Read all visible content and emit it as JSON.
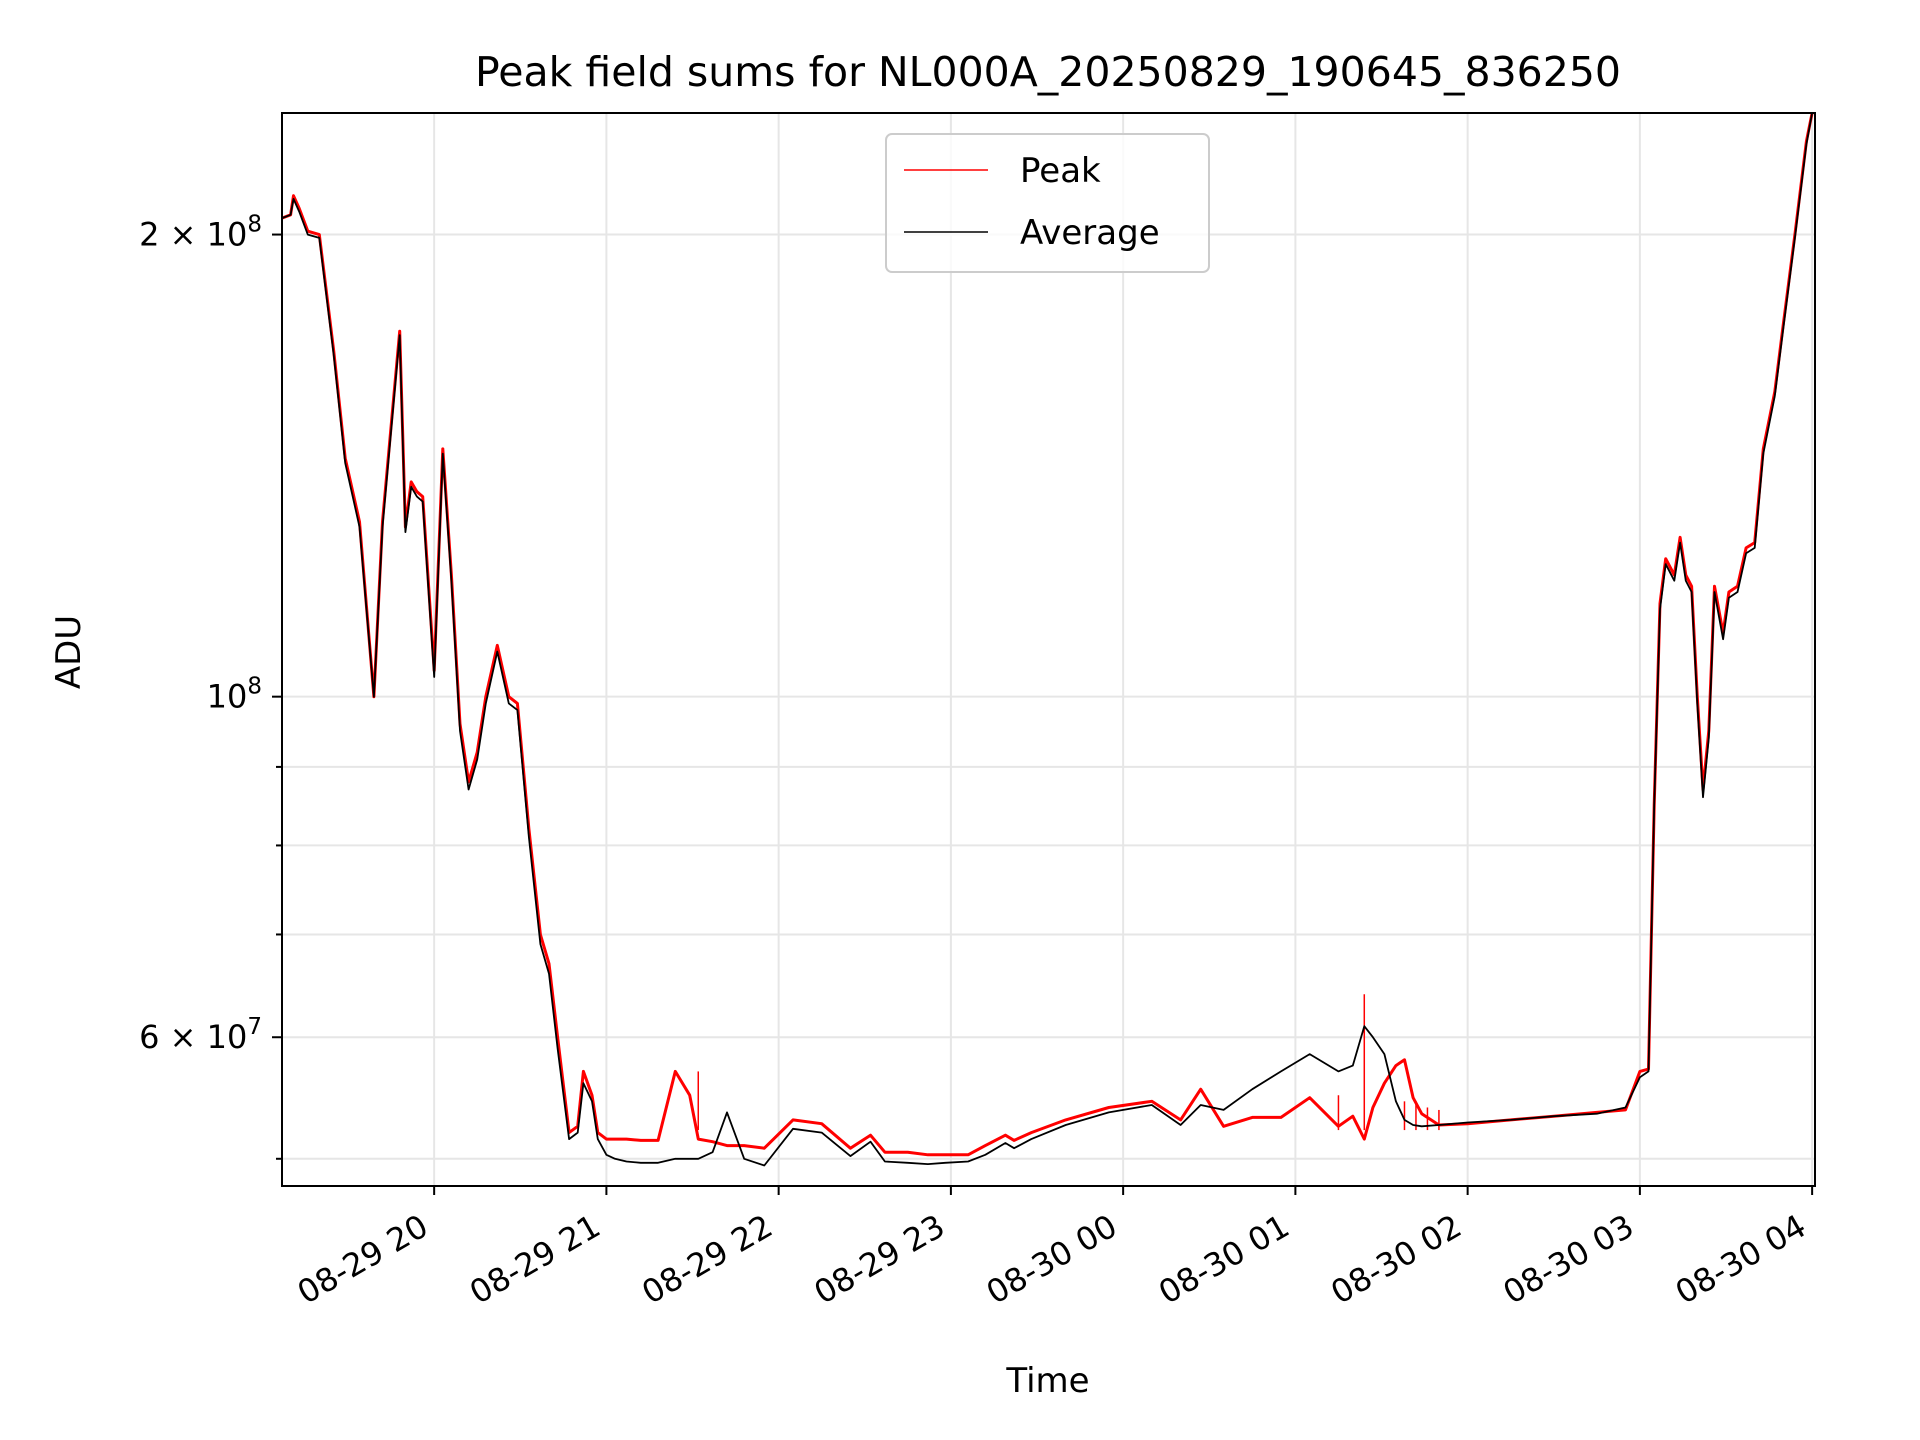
{
  "chart_data": {
    "type": "line",
    "title": "Peak field sums for NL000A_20250829_190645_836250",
    "xlabel": "Time",
    "ylabel": "ADU",
    "x_scale": "time",
    "y_scale": "log",
    "xlim": [
      "2025-08-29T19:07",
      "2025-08-30T04:01"
    ],
    "ylim": [
      48000000,
      240000000
    ],
    "grid": true,
    "legend_position": "upper center",
    "x_ticks": [
      {
        "label": "08-29 20",
        "t": "2025-08-29T20:00"
      },
      {
        "label": "08-29 21",
        "t": "2025-08-29T21:00"
      },
      {
        "label": "08-29 22",
        "t": "2025-08-29T22:00"
      },
      {
        "label": "08-29 23",
        "t": "2025-08-29T23:00"
      },
      {
        "label": "08-30 00",
        "t": "2025-08-30T00:00"
      },
      {
        "label": "08-30 01",
        "t": "2025-08-30T01:00"
      },
      {
        "label": "08-30 02",
        "t": "2025-08-30T02:00"
      },
      {
        "label": "08-30 03",
        "t": "2025-08-30T03:00"
      },
      {
        "label": "08-30 04",
        "t": "2025-08-30T04:00"
      }
    ],
    "y_major_ticks": [
      {
        "value": 100000000,
        "base": "10",
        "exp": "8"
      },
      {
        "value": 60000000,
        "base": "6 × 10",
        "exp": "7"
      },
      {
        "value": 200000000,
        "base": "2 × 10",
        "exp": "8"
      }
    ],
    "y_minor_ticks": [
      50000000,
      70000000,
      80000000,
      90000000,
      300000000
    ],
    "series": [
      {
        "name": "Peak",
        "color": "#ff0000",
        "x": [
          "2025-08-29T19:07",
          "2025-08-29T19:10",
          "2025-08-29T19:11",
          "2025-08-29T19:13",
          "2025-08-29T19:16",
          "2025-08-29T19:20",
          "2025-08-29T19:25",
          "2025-08-29T19:29",
          "2025-08-29T19:34",
          "2025-08-29T19:39",
          "2025-08-29T19:42",
          "2025-08-29T19:45",
          "2025-08-29T19:48",
          "2025-08-29T19:50",
          "2025-08-29T19:52",
          "2025-08-29T19:54",
          "2025-08-29T19:56",
          "2025-08-29T20:00",
          "2025-08-29T20:03",
          "2025-08-29T20:06",
          "2025-08-29T20:09",
          "2025-08-29T20:12",
          "2025-08-29T20:15",
          "2025-08-29T20:18",
          "2025-08-29T20:22",
          "2025-08-29T20:26",
          "2025-08-29T20:29",
          "2025-08-29T20:33",
          "2025-08-29T20:37",
          "2025-08-29T20:40",
          "2025-08-29T20:43",
          "2025-08-29T20:47",
          "2025-08-29T20:50",
          "2025-08-29T20:52",
          "2025-08-29T20:55",
          "2025-08-29T20:57",
          "2025-08-29T21:00",
          "2025-08-29T21:03",
          "2025-08-29T21:07",
          "2025-08-29T21:12",
          "2025-08-29T21:18",
          "2025-08-29T21:24",
          "2025-08-29T21:29",
          "2025-08-29T21:32",
          "2025-08-29T21:37",
          "2025-08-29T21:42",
          "2025-08-29T21:48",
          "2025-08-29T21:55",
          "2025-08-29T22:05",
          "2025-08-29T22:15",
          "2025-08-29T22:25",
          "2025-08-29T22:32",
          "2025-08-29T22:37",
          "2025-08-29T22:45",
          "2025-08-29T22:52",
          "2025-08-29T22:58",
          "2025-08-29T23:06",
          "2025-08-29T23:12",
          "2025-08-29T23:19",
          "2025-08-29T23:22",
          "2025-08-29T23:28",
          "2025-08-29T23:40",
          "2025-08-29T23:55",
          "2025-08-30T00:10",
          "2025-08-30T00:20",
          "2025-08-30T00:27",
          "2025-08-30T00:35",
          "2025-08-30T00:45",
          "2025-08-30T00:55",
          "2025-08-30T01:05",
          "2025-08-30T01:15",
          "2025-08-30T01:20",
          "2025-08-30T01:24",
          "2025-08-30T01:27",
          "2025-08-30T01:31",
          "2025-08-30T01:35",
          "2025-08-30T01:38",
          "2025-08-30T01:41",
          "2025-08-30T01:44",
          "2025-08-30T01:50",
          "2025-08-30T02:00",
          "2025-08-30T02:15",
          "2025-08-30T02:30",
          "2025-08-30T02:45",
          "2025-08-30T02:55",
          "2025-08-30T03:00",
          "2025-08-30T03:03",
          "2025-08-30T03:05",
          "2025-08-30T03:07",
          "2025-08-30T03:09",
          "2025-08-30T03:12",
          "2025-08-30T03:14",
          "2025-08-30T03:16",
          "2025-08-30T03:18",
          "2025-08-30T03:20",
          "2025-08-30T03:22",
          "2025-08-30T03:24",
          "2025-08-30T03:26",
          "2025-08-30T03:29",
          "2025-08-30T03:31",
          "2025-08-30T03:34",
          "2025-08-30T03:37",
          "2025-08-30T03:40",
          "2025-08-30T03:43",
          "2025-08-30T03:47",
          "2025-08-30T03:50",
          "2025-08-30T03:54",
          "2025-08-30T03:58",
          "2025-08-30T04:00"
        ],
        "values": [
          205000000,
          206000000,
          212000000,
          208000000,
          201000000,
          200000000,
          168000000,
          143000000,
          130000000,
          100000000,
          130000000,
          150000000,
          173000000,
          129000000,
          138000000,
          136000000,
          135000000,
          104000000,
          145000000,
          120000000,
          96000000,
          88000000,
          92000000,
          100000000,
          108000000,
          100000000,
          99000000,
          82000000,
          70000000,
          67000000,
          60000000,
          52000000,
          52500000,
          57000000,
          55000000,
          52000000,
          51500000,
          51500000,
          51500000,
          51400000,
          51400000,
          57000000,
          55000000,
          51500000,
          51300000,
          51000000,
          51000000,
          50800000,
          53000000,
          52700000,
          50800000,
          51800000,
          50500000,
          50500000,
          50300000,
          50300000,
          50300000,
          51000000,
          51800000,
          51400000,
          52000000,
          53000000,
          54000000,
          54500000,
          53000000,
          55500000,
          52500000,
          53200000,
          53200000,
          54800000,
          52500000,
          53300000,
          51500000,
          54000000,
          56000000,
          57500000,
          58000000,
          54800000,
          53500000,
          52600000,
          52700000,
          53000000,
          53300000,
          53600000,
          53800000,
          57000000,
          57200000,
          85000000,
          115000000,
          123000000,
          120000000,
          127000000,
          120000000,
          118000000,
          100000000,
          87000000,
          95000000,
          118000000,
          110000000,
          117000000,
          118000000,
          125000000,
          126000000,
          145000000,
          158000000,
          175000000,
          200000000,
          230000000,
          240000000
        ],
        "spikes": [
          {
            "x": "2025-08-29T21:32",
            "value": 57000000
          },
          {
            "x": "2025-08-30T01:15",
            "value": 55000000
          },
          {
            "x": "2025-08-30T01:24",
            "value": 64000000
          },
          {
            "x": "2025-08-30T01:38",
            "value": 54500000
          },
          {
            "x": "2025-08-30T01:42",
            "value": 54500000
          },
          {
            "x": "2025-08-30T01:46",
            "value": 54000000
          },
          {
            "x": "2025-08-30T01:50",
            "value": 53800000
          }
        ]
      },
      {
        "name": "Average",
        "color": "#000000",
        "x": [
          "2025-08-29T19:07",
          "2025-08-29T19:10",
          "2025-08-29T19:11",
          "2025-08-29T19:13",
          "2025-08-29T19:16",
          "2025-08-29T19:20",
          "2025-08-29T19:25",
          "2025-08-29T19:29",
          "2025-08-29T19:34",
          "2025-08-29T19:39",
          "2025-08-29T19:42",
          "2025-08-29T19:45",
          "2025-08-29T19:48",
          "2025-08-29T19:50",
          "2025-08-29T19:52",
          "2025-08-29T19:54",
          "2025-08-29T19:56",
          "2025-08-29T20:00",
          "2025-08-29T20:03",
          "2025-08-29T20:06",
          "2025-08-29T20:09",
          "2025-08-29T20:12",
          "2025-08-29T20:15",
          "2025-08-29T20:18",
          "2025-08-29T20:22",
          "2025-08-29T20:26",
          "2025-08-29T20:29",
          "2025-08-29T20:33",
          "2025-08-29T20:37",
          "2025-08-29T20:40",
          "2025-08-29T20:43",
          "2025-08-29T20:47",
          "2025-08-29T20:50",
          "2025-08-29T20:52",
          "2025-08-29T20:55",
          "2025-08-29T20:57",
          "2025-08-29T21:00",
          "2025-08-29T21:03",
          "2025-08-29T21:07",
          "2025-08-29T21:12",
          "2025-08-29T21:18",
          "2025-08-29T21:24",
          "2025-08-29T21:29",
          "2025-08-29T21:32",
          "2025-08-29T21:37",
          "2025-08-29T21:42",
          "2025-08-29T21:48",
          "2025-08-29T21:55",
          "2025-08-29T22:05",
          "2025-08-29T22:15",
          "2025-08-29T22:25",
          "2025-08-29T22:32",
          "2025-08-29T22:37",
          "2025-08-29T22:45",
          "2025-08-29T22:52",
          "2025-08-29T22:58",
          "2025-08-29T23:06",
          "2025-08-29T23:12",
          "2025-08-29T23:19",
          "2025-08-29T23:22",
          "2025-08-29T23:28",
          "2025-08-29T23:40",
          "2025-08-29T23:55",
          "2025-08-30T00:10",
          "2025-08-30T00:20",
          "2025-08-30T00:27",
          "2025-08-30T00:35",
          "2025-08-30T00:45",
          "2025-08-30T00:55",
          "2025-08-30T01:05",
          "2025-08-30T01:15",
          "2025-08-30T01:20",
          "2025-08-30T01:24",
          "2025-08-30T01:27",
          "2025-08-30T01:31",
          "2025-08-30T01:35",
          "2025-08-30T01:38",
          "2025-08-30T01:41",
          "2025-08-30T01:44",
          "2025-08-30T01:50",
          "2025-08-30T02:00",
          "2025-08-30T02:15",
          "2025-08-30T02:30",
          "2025-08-30T02:45",
          "2025-08-30T02:55",
          "2025-08-30T03:00",
          "2025-08-30T03:03",
          "2025-08-30T03:05",
          "2025-08-30T03:07",
          "2025-08-30T03:09",
          "2025-08-30T03:12",
          "2025-08-30T03:14",
          "2025-08-30T03:16",
          "2025-08-30T03:18",
          "2025-08-30T03:20",
          "2025-08-30T03:22",
          "2025-08-30T03:24",
          "2025-08-30T03:26",
          "2025-08-30T03:29",
          "2025-08-30T03:31",
          "2025-08-30T03:34",
          "2025-08-30T03:37",
          "2025-08-30T03:40",
          "2025-08-30T03:43",
          "2025-08-30T03:47",
          "2025-08-30T03:50",
          "2025-08-30T03:54",
          "2025-08-30T03:58",
          "2025-08-30T04:00"
        ],
        "values": [
          205000000,
          206000000,
          211000000,
          207000000,
          200000000,
          199000000,
          167000000,
          142000000,
          129000000,
          100000000,
          129000000,
          149000000,
          172000000,
          128000000,
          137000000,
          135000000,
          134000000,
          103000000,
          144000000,
          119000000,
          95000000,
          87000000,
          91000000,
          99000000,
          107000000,
          99000000,
          98000000,
          81000000,
          69000000,
          66000000,
          59000000,
          51500000,
          52000000,
          56000000,
          54500000,
          51500000,
          50300000,
          50000000,
          49800000,
          49700000,
          49700000,
          50000000,
          50000000,
          50000000,
          50500000,
          53600000,
          50000000,
          49500000,
          52300000,
          52000000,
          50200000,
          51300000,
          49800000,
          49700000,
          49600000,
          49700000,
          49800000,
          50300000,
          51200000,
          50800000,
          51500000,
          52600000,
          53600000,
          54200000,
          52600000,
          54200000,
          53800000,
          55500000,
          57000000,
          58500000,
          57000000,
          57500000,
          61000000,
          60000000,
          58500000,
          54500000,
          53000000,
          52600000,
          52500000,
          52600000,
          52800000,
          53000000,
          53300000,
          53500000,
          54000000,
          56500000,
          57000000,
          85000000,
          114000000,
          122000000,
          119000000,
          126000000,
          119000000,
          117000000,
          99000000,
          86000000,
          94000000,
          117000000,
          109000000,
          116000000,
          117000000,
          124000000,
          125000000,
          144000000,
          157000000,
          174000000,
          199000000,
          229000000,
          240000000
        ]
      }
    ]
  }
}
